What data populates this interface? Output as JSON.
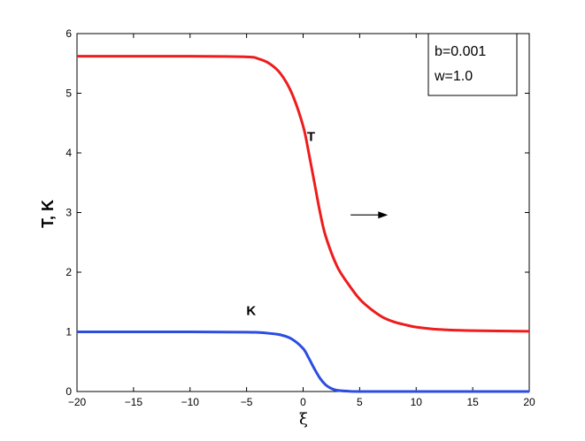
{
  "chart_data": {
    "type": "line",
    "xlabel": "ξ",
    "ylabel": "T, K",
    "xlim": [
      -20,
      20
    ],
    "ylim": [
      0,
      6
    ],
    "xticks": [
      -20,
      -15,
      -10,
      -5,
      0,
      5,
      10,
      15,
      20
    ],
    "yticks": [
      0,
      1,
      2,
      3,
      4,
      5,
      6
    ],
    "grid": false,
    "series": [
      {
        "name": "T",
        "color": "#ee1c1c",
        "x": [
          -20,
          -10,
          -5,
          -4,
          -3,
          -2,
          -1,
          0,
          0.5,
          1,
          1.5,
          2,
          3,
          4,
          5,
          6,
          7,
          8,
          9,
          10,
          12,
          15,
          20
        ],
        "y": [
          5.62,
          5.62,
          5.61,
          5.58,
          5.5,
          5.33,
          5.0,
          4.45,
          4.0,
          3.5,
          3.0,
          2.6,
          2.1,
          1.8,
          1.55,
          1.38,
          1.25,
          1.17,
          1.12,
          1.08,
          1.04,
          1.02,
          1.01
        ]
      },
      {
        "name": "K",
        "color": "#2b4de0",
        "x": [
          -20,
          -10,
          -5,
          -4,
          -3,
          -2,
          -1,
          0,
          0.5,
          1,
          1.5,
          2,
          2.5,
          3,
          4,
          5,
          10,
          20
        ],
        "y": [
          1.0,
          1.0,
          0.995,
          0.99,
          0.975,
          0.95,
          0.88,
          0.72,
          0.56,
          0.38,
          0.22,
          0.11,
          0.05,
          0.02,
          0.005,
          0.0,
          0.0,
          0.0
        ]
      }
    ],
    "annotations": [
      {
        "id": "T",
        "text": "T",
        "x": 0.7,
        "y": 4.2
      },
      {
        "id": "K",
        "text": "K",
        "x": -4.6,
        "y": 1.28
      }
    ],
    "arrow": {
      "from": [
        4.2,
        2.96
      ],
      "to": [
        7.5,
        2.96
      ]
    },
    "legend": {
      "placement": "top-right",
      "lines": [
        "b=0.001",
        "w=1.0"
      ]
    }
  }
}
